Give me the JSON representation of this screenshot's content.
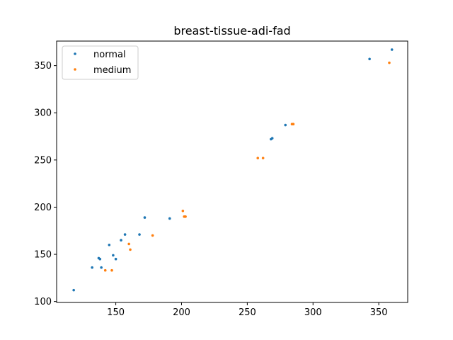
{
  "chart_data": {
    "type": "scatter",
    "title": "breast-tissue-adi-fad",
    "xlabel": "",
    "ylabel": "",
    "xlim": [
      105,
      372
    ],
    "ylim": [
      99,
      376
    ],
    "xticks": [
      150,
      200,
      250,
      300,
      350
    ],
    "yticks": [
      100,
      150,
      200,
      250,
      300,
      350
    ],
    "grid": false,
    "legend_position": "upper-left",
    "series": [
      {
        "name": "normal",
        "color": "#1f77b4",
        "points": [
          [
            118,
            112
          ],
          [
            132,
            136
          ],
          [
            137,
            146
          ],
          [
            138,
            145
          ],
          [
            139,
            136
          ],
          [
            145,
            160
          ],
          [
            148,
            149
          ],
          [
            150,
            145
          ],
          [
            154,
            165
          ],
          [
            157,
            171
          ],
          [
            168,
            171
          ],
          [
            172,
            189
          ],
          [
            191,
            188
          ],
          [
            268,
            272
          ],
          [
            269,
            273
          ],
          [
            279,
            287
          ],
          [
            343,
            357
          ],
          [
            360,
            367
          ]
        ]
      },
      {
        "name": "medium",
        "color": "#ff7f0e",
        "points": [
          [
            142,
            133
          ],
          [
            147,
            133
          ],
          [
            160,
            161
          ],
          [
            161,
            155
          ],
          [
            178,
            170
          ],
          [
            201,
            196
          ],
          [
            202,
            190
          ],
          [
            203,
            190
          ],
          [
            258,
            252
          ],
          [
            262,
            252
          ],
          [
            284,
            288
          ],
          [
            285,
            288
          ],
          [
            358,
            353
          ]
        ]
      }
    ]
  }
}
